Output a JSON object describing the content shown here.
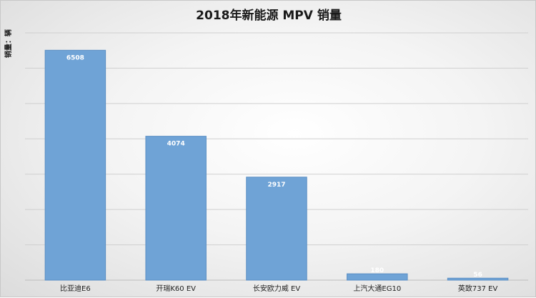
{
  "chart_data": {
    "type": "bar",
    "title": "2018年新能源 MPV 销量",
    "ylabel": "销量：辆",
    "xlabel": "",
    "categories": [
      "比亚迪E6",
      "开瑞K60 EV",
      "长安欧力威 EV",
      "上汽大通EG10",
      "英致737 EV"
    ],
    "values": [
      6508,
      4074,
      2917,
      180,
      56
    ],
    "ylim": [
      0,
      7000
    ],
    "grid": true,
    "legend": "none",
    "colors": {
      "bar": "#6fa3d6",
      "bar_edge": "#5b8fc4",
      "grid": "#cfcfcf"
    }
  }
}
